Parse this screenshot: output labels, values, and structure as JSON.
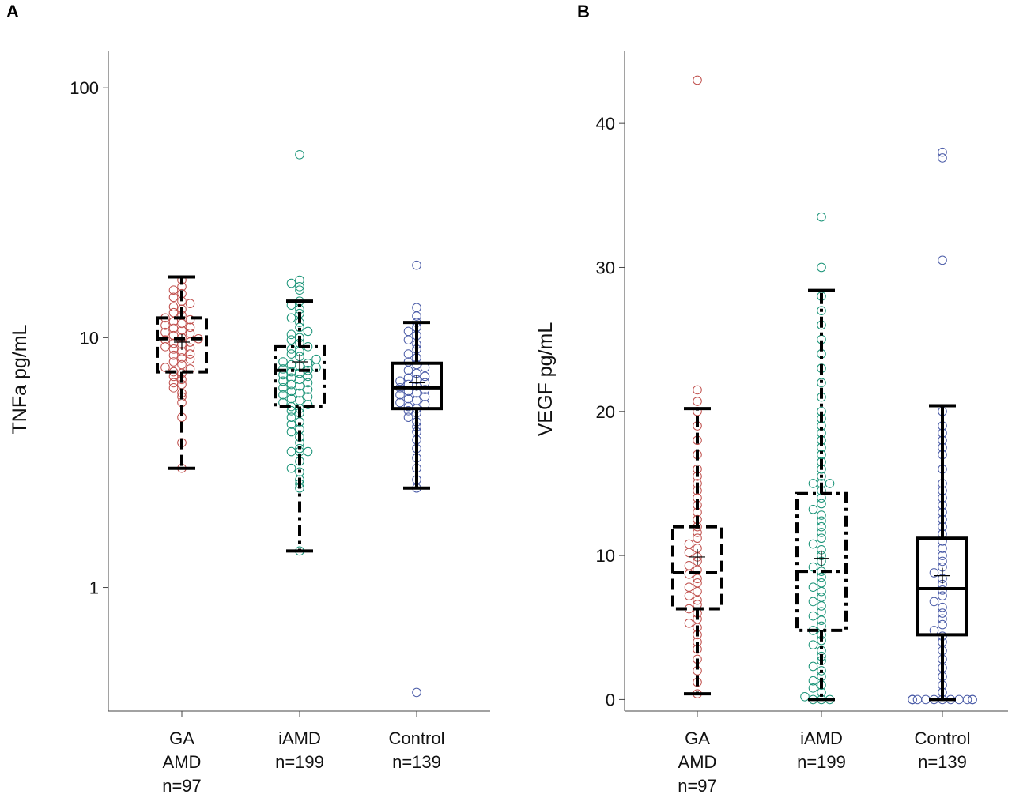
{
  "panels": {
    "a_letter": "A",
    "b_letter": "B"
  },
  "colors": {
    "ga": "#c0504d",
    "iamd": "#1a9478",
    "control": "#4b5ca8",
    "box": "#000000"
  },
  "chart_data": [
    {
      "type": "box",
      "panel": "A",
      "title": "",
      "ylabel": "TNFa pg/mL",
      "yscale": "log",
      "ylim": [
        0.32,
        140
      ],
      "yticks": [
        1,
        10,
        100
      ],
      "ytick_labels": [
        "1",
        "10",
        "100"
      ],
      "categories": [
        "GA\nAMD\nn=97",
        "iAMD\nn=199",
        "Control\nn=139"
      ],
      "groups": [
        {
          "name": "GA AMD",
          "n": 97,
          "line_style": "dashed",
          "whisker_low": 3.0,
          "q1": 7.3,
          "median": 9.9,
          "q3": 12.0,
          "whisker_high": 17.5,
          "mean": 9.6,
          "points": [
            3.0,
            3.8,
            4.8,
            5.5,
            5.8,
            6.0,
            6.3,
            6.5,
            6.6,
            6.8,
            7.0,
            7.2,
            7.3,
            7.5,
            7.6,
            7.8,
            8.0,
            8.2,
            8.3,
            8.5,
            8.6,
            8.8,
            9.0,
            9.1,
            9.2,
            9.4,
            9.5,
            9.6,
            9.8,
            9.9,
            10.0,
            10.2,
            10.4,
            10.5,
            10.7,
            10.9,
            11.0,
            11.2,
            11.4,
            11.6,
            11.8,
            12.0,
            12.3,
            12.6,
            13.0,
            13.3,
            13.7,
            14.0,
            14.5,
            15.0,
            15.5,
            16.0,
            17.0
          ]
        },
        {
          "name": "iAMD",
          "n": 199,
          "line_style": "dash-dot",
          "whisker_low": 1.4,
          "q1": 5.3,
          "median": 7.4,
          "q3": 9.2,
          "whisker_high": 14.0,
          "mean": 8.0,
          "points": [
            1.4,
            2.5,
            2.6,
            2.7,
            2.9,
            3.0,
            3.2,
            3.5,
            3.5,
            3.5,
            3.6,
            3.8,
            4.0,
            4.2,
            4.3,
            4.5,
            4.6,
            4.8,
            5.0,
            5.1,
            5.2,
            5.3,
            5.4,
            5.5,
            5.6,
            5.7,
            5.8,
            5.9,
            6.0,
            6.1,
            6.2,
            6.3,
            6.4,
            6.5,
            6.6,
            6.7,
            6.8,
            6.9,
            7.0,
            7.1,
            7.2,
            7.3,
            7.4,
            7.5,
            7.6,
            7.7,
            7.8,
            7.9,
            8.0,
            8.2,
            8.4,
            8.6,
            8.8,
            9.0,
            9.2,
            9.5,
            9.8,
            10.0,
            10.3,
            10.6,
            11.0,
            11.5,
            12.0,
            12.5,
            13.0,
            13.5,
            14.0,
            15.5,
            16.0,
            16.5,
            17.0,
            54.0
          ]
        },
        {
          "name": "Control",
          "n": 139,
          "line_style": "solid",
          "whisker_low": 2.5,
          "q1": 5.2,
          "median": 6.3,
          "q3": 7.9,
          "whisker_high": 11.5,
          "mean": 6.6,
          "points": [
            0.38,
            2.5,
            2.7,
            3.0,
            3.3,
            3.6,
            3.9,
            4.2,
            4.4,
            4.6,
            4.8,
            5.0,
            5.1,
            5.2,
            5.3,
            5.4,
            5.5,
            5.6,
            5.7,
            5.8,
            5.9,
            6.0,
            6.1,
            6.2,
            6.3,
            6.4,
            6.5,
            6.6,
            6.7,
            6.8,
            6.9,
            7.0,
            7.2,
            7.4,
            7.6,
            7.8,
            8.0,
            8.3,
            8.6,
            9.0,
            9.4,
            9.8,
            10.2,
            10.6,
            11.0,
            11.5,
            12.2,
            13.2,
            19.5
          ]
        }
      ]
    },
    {
      "type": "box",
      "panel": "B",
      "title": "",
      "ylabel": "VEGF pg/mL",
      "yscale": "linear",
      "ylim": [
        -0.8,
        45
      ],
      "yticks": [
        0,
        10,
        20,
        30,
        40
      ],
      "ytick_labels": [
        "0",
        "10",
        "20",
        "30",
        "40"
      ],
      "categories": [
        "GA\nAMD\nn=97",
        "iAMD\nn=199",
        "Control\nn=139"
      ],
      "groups": [
        {
          "name": "GA AMD",
          "n": 97,
          "line_style": "dashed",
          "whisker_low": 0.4,
          "q1": 6.3,
          "median": 8.8,
          "q3": 12.0,
          "whisker_high": 20.2,
          "mean": 9.9,
          "points": [
            0.4,
            1.2,
            2.0,
            2.8,
            3.5,
            4.0,
            4.5,
            5.0,
            5.3,
            5.6,
            6.0,
            6.3,
            6.6,
            6.9,
            7.2,
            7.5,
            7.8,
            8.1,
            8.4,
            8.7,
            9.0,
            9.3,
            9.6,
            9.9,
            10.2,
            10.5,
            10.8,
            11.2,
            11.6,
            12.0,
            12.5,
            13.0,
            13.5,
            14.0,
            14.5,
            15.0,
            15.5,
            16.0,
            17.0,
            18.0,
            19.0,
            20.0,
            20.7,
            21.5,
            43.0
          ]
        },
        {
          "name": "iAMD",
          "n": 199,
          "line_style": "dash-dot",
          "whisker_low": 0.0,
          "q1": 4.8,
          "median": 8.9,
          "q3": 14.3,
          "whisker_high": 28.4,
          "mean": 9.8,
          "points": [
            0.0,
            0.0,
            0.0,
            0.2,
            0.5,
            0.8,
            1.0,
            1.3,
            1.6,
            2.0,
            2.3,
            2.7,
            3.0,
            3.4,
            3.8,
            4.1,
            4.5,
            4.8,
            5.1,
            5.5,
            5.8,
            6.1,
            6.5,
            6.8,
            7.1,
            7.5,
            7.8,
            8.1,
            8.5,
            8.9,
            9.2,
            9.6,
            10.0,
            10.4,
            10.8,
            11.2,
            11.6,
            12.0,
            12.4,
            12.8,
            13.2,
            13.6,
            14.0,
            14.5,
            15.0,
            15.0,
            15.0,
            15.5,
            16.0,
            16.5,
            17.0,
            17.5,
            18.0,
            18.5,
            19.0,
            19.5,
            20.0,
            21.0,
            22.0,
            23.0,
            24.0,
            25.0,
            26.0,
            27.0,
            28.0,
            30.0,
            33.5
          ]
        },
        {
          "name": "Control",
          "n": 139,
          "line_style": "solid",
          "whisker_low": 0.0,
          "q1": 4.5,
          "median": 7.7,
          "q3": 11.2,
          "whisker_high": 20.4,
          "mean": 8.6,
          "points": [
            0.0,
            0.0,
            0.0,
            0.0,
            0.0,
            0.0,
            0.0,
            0.0,
            0.0,
            0.0,
            0.0,
            0.0,
            0.5,
            1.0,
            1.6,
            2.2,
            2.8,
            3.4,
            4.0,
            4.4,
            4.8,
            5.2,
            5.6,
            6.0,
            6.4,
            6.8,
            7.2,
            7.6,
            8.0,
            8.4,
            8.8,
            9.2,
            9.6,
            10.0,
            10.5,
            11.0,
            11.5,
            12.0,
            12.5,
            13.0,
            13.5,
            14.0,
            14.5,
            15.0,
            16.0,
            17.0,
            17.5,
            18.0,
            18.5,
            19.0,
            20.0,
            30.5,
            37.6,
            38.0
          ]
        }
      ]
    }
  ]
}
